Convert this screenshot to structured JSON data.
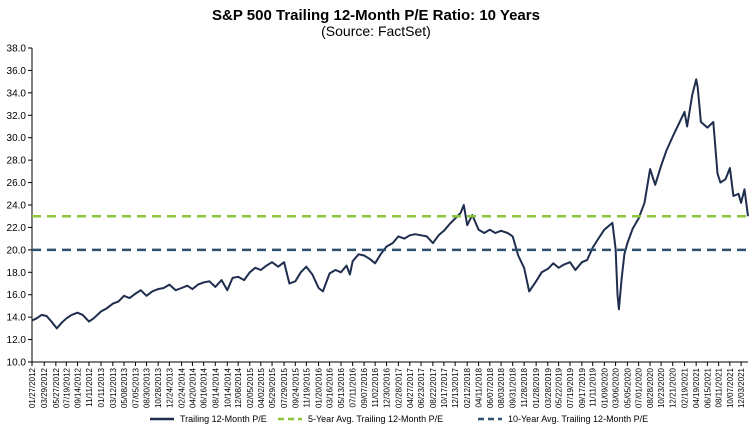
{
  "chart_data": {
    "type": "line",
    "title": "S&P 500 Trailing 12-Month P/E Ratio: 10 Years",
    "subtitle": "(Source: FactSet)",
    "xlabel": "",
    "ylabel": "",
    "ylim": [
      10.0,
      38.0
    ],
    "yticks": [
      "38.0",
      "36.0",
      "34.0",
      "32.0",
      "30.0",
      "28.0",
      "26.0",
      "24.0",
      "22.0",
      "20.0",
      "18.0",
      "16.0",
      "14.0",
      "12.0",
      "10.0"
    ],
    "xlim": [
      "2012-01-27",
      "2022-01-07"
    ],
    "xticks": [
      "01/27/2012",
      "03/29/2012",
      "05/27/2012",
      "07/19/2012",
      "09/14/2012",
      "11/11/2012",
      "01/11/2013",
      "03/12/2013",
      "05/08/2013",
      "07/05/2013",
      "08/30/2013",
      "10/28/2013",
      "12/24/2013",
      "02/24/2014",
      "04/20/2014",
      "06/16/2014",
      "08/14/2014",
      "10/14/2014",
      "12/08/2014",
      "02/05/2015",
      "04/02/2015",
      "05/29/2015",
      "07/29/2015",
      "09/24/2015",
      "11/19/2015",
      "01/20/2016",
      "03/16/2016",
      "05/13/2016",
      "07/11/2016",
      "09/07/2016",
      "11/02/2016",
      "12/30/2016",
      "02/28/2017",
      "04/27/2017",
      "06/23/2017",
      "08/22/2017",
      "10/17/2017",
      "12/13/2017",
      "02/12/2018",
      "04/11/2018",
      "06/07/2018",
      "08/03/2018",
      "09/31/2018",
      "11/28/2018",
      "01/28/2019",
      "03/28/2019",
      "05/22/2019",
      "07/19/2019",
      "09/17/2019",
      "11/11/2019",
      "01/09/2020",
      "03/06/2020",
      "05/05/2020",
      "07/01/2020",
      "08/28/2020",
      "10/23/2020",
      "12/21/2020",
      "02/19/2021",
      "04/19/2021",
      "06/15/2021",
      "08/11/2021",
      "10/07/2021",
      "12/03/2021"
    ],
    "grid": false,
    "legend_position": "bottom",
    "series": [
      {
        "name": "Trailing 12-Month P/E",
        "color": "#1f2d4e",
        "style": "solid",
        "points": [
          [
            "2012-01-27",
            13.7
          ],
          [
            "2012-02-20",
            13.9
          ],
          [
            "2012-03-15",
            14.2
          ],
          [
            "2012-04-10",
            14.1
          ],
          [
            "2012-05-05",
            13.6
          ],
          [
            "2012-06-01",
            13.0
          ],
          [
            "2012-06-25",
            13.5
          ],
          [
            "2012-07-20",
            13.9
          ],
          [
            "2012-08-15",
            14.2
          ],
          [
            "2012-09-14",
            14.4
          ],
          [
            "2012-10-10",
            14.2
          ],
          [
            "2012-11-11",
            13.6
          ],
          [
            "2012-12-05",
            13.9
          ],
          [
            "2013-01-11",
            14.5
          ],
          [
            "2013-02-10",
            14.8
          ],
          [
            "2013-03-12",
            15.2
          ],
          [
            "2013-04-10",
            15.4
          ],
          [
            "2013-05-08",
            15.9
          ],
          [
            "2013-06-05",
            15.7
          ],
          [
            "2013-07-05",
            16.1
          ],
          [
            "2013-08-01",
            16.4
          ],
          [
            "2013-08-30",
            15.9
          ],
          [
            "2013-09-28",
            16.3
          ],
          [
            "2013-10-28",
            16.5
          ],
          [
            "2013-11-25",
            16.6
          ],
          [
            "2013-12-24",
            16.9
          ],
          [
            "2014-01-25",
            16.4
          ],
          [
            "2014-02-24",
            16.6
          ],
          [
            "2014-03-25",
            16.8
          ],
          [
            "2014-04-20",
            16.5
          ],
          [
            "2014-05-18",
            16.9
          ],
          [
            "2014-06-16",
            17.1
          ],
          [
            "2014-07-15",
            17.2
          ],
          [
            "2014-08-14",
            16.7
          ],
          [
            "2014-09-15",
            17.3
          ],
          [
            "2014-10-14",
            16.4
          ],
          [
            "2014-11-10",
            17.5
          ],
          [
            "2014-12-08",
            17.6
          ],
          [
            "2015-01-07",
            17.3
          ],
          [
            "2015-02-05",
            18.0
          ],
          [
            "2015-03-05",
            18.4
          ],
          [
            "2015-04-02",
            18.2
          ],
          [
            "2015-05-01",
            18.6
          ],
          [
            "2015-05-29",
            18.9
          ],
          [
            "2015-06-29",
            18.5
          ],
          [
            "2015-07-29",
            18.9
          ],
          [
            "2015-08-25",
            17.0
          ],
          [
            "2015-09-24",
            17.2
          ],
          [
            "2015-10-22",
            18.0
          ],
          [
            "2015-11-19",
            18.5
          ],
          [
            "2015-12-20",
            17.8
          ],
          [
            "2016-01-20",
            16.6
          ],
          [
            "2016-02-11",
            16.3
          ],
          [
            "2016-03-16",
            17.9
          ],
          [
            "2016-04-15",
            18.2
          ],
          [
            "2016-05-13",
            18.0
          ],
          [
            "2016-06-10",
            18.6
          ],
          [
            "2016-06-27",
            17.8
          ],
          [
            "2016-07-11",
            19.0
          ],
          [
            "2016-08-10",
            19.6
          ],
          [
            "2016-09-07",
            19.5
          ],
          [
            "2016-10-05",
            19.2
          ],
          [
            "2016-11-02",
            18.8
          ],
          [
            "2016-11-30",
            19.6
          ],
          [
            "2016-12-30",
            20.3
          ],
          [
            "2017-01-30",
            20.6
          ],
          [
            "2017-02-28",
            21.2
          ],
          [
            "2017-03-30",
            21.0
          ],
          [
            "2017-04-27",
            21.3
          ],
          [
            "2017-05-25",
            21.4
          ],
          [
            "2017-06-23",
            21.3
          ],
          [
            "2017-07-22",
            21.2
          ],
          [
            "2017-08-22",
            20.6
          ],
          [
            "2017-09-20",
            21.3
          ],
          [
            "2017-10-17",
            21.7
          ],
          [
            "2017-11-15",
            22.3
          ],
          [
            "2017-12-13",
            22.8
          ],
          [
            "2018-01-10",
            23.3
          ],
          [
            "2018-01-26",
            24.0
          ],
          [
            "2018-02-12",
            22.2
          ],
          [
            "2018-03-10",
            23.1
          ],
          [
            "2018-04-11",
            21.8
          ],
          [
            "2018-05-10",
            21.5
          ],
          [
            "2018-06-07",
            21.8
          ],
          [
            "2018-07-05",
            21.5
          ],
          [
            "2018-08-03",
            21.7
          ],
          [
            "2018-09-05",
            21.5
          ],
          [
            "2018-09-31",
            21.2
          ],
          [
            "2018-10-29",
            19.5
          ],
          [
            "2018-11-28",
            18.4
          ],
          [
            "2018-12-24",
            16.3
          ],
          [
            "2019-01-28",
            17.2
          ],
          [
            "2019-02-25",
            18.0
          ],
          [
            "2019-03-28",
            18.3
          ],
          [
            "2019-04-25",
            18.8
          ],
          [
            "2019-05-22",
            18.4
          ],
          [
            "2019-06-20",
            18.7
          ],
          [
            "2019-07-19",
            18.9
          ],
          [
            "2019-08-15",
            18.2
          ],
          [
            "2019-09-17",
            18.9
          ],
          [
            "2019-10-14",
            19.1
          ],
          [
            "2019-11-11",
            20.2
          ],
          [
            "2019-12-10",
            21.0
          ],
          [
            "2020-01-09",
            21.8
          ],
          [
            "2020-02-19",
            22.4
          ],
          [
            "2020-03-06",
            20.1
          ],
          [
            "2020-03-16",
            16.0
          ],
          [
            "2020-03-23",
            14.7
          ],
          [
            "2020-04-06",
            17.5
          ],
          [
            "2020-04-20",
            19.6
          ],
          [
            "2020-05-05",
            20.6
          ],
          [
            "2020-06-01",
            21.9
          ],
          [
            "2020-07-01",
            22.8
          ],
          [
            "2020-07-31",
            24.2
          ],
          [
            "2020-08-28",
            27.2
          ],
          [
            "2020-09-23",
            25.8
          ],
          [
            "2020-10-23",
            27.5
          ],
          [
            "2020-11-20",
            28.9
          ],
          [
            "2020-12-21",
            30.1
          ],
          [
            "2021-01-20",
            31.2
          ],
          [
            "2021-02-19",
            32.3
          ],
          [
            "2021-03-04",
            31.0
          ],
          [
            "2021-03-30",
            33.8
          ],
          [
            "2021-04-19",
            35.2
          ],
          [
            "2021-04-27",
            34.5
          ],
          [
            "2021-05-13",
            31.4
          ],
          [
            "2021-06-15",
            30.9
          ],
          [
            "2021-07-15",
            31.4
          ],
          [
            "2021-08-05",
            26.8
          ],
          [
            "2021-08-20",
            26.0
          ],
          [
            "2021-09-15",
            26.3
          ],
          [
            "2021-10-07",
            27.3
          ],
          [
            "2021-10-25",
            24.8
          ],
          [
            "2021-11-20",
            25.0
          ],
          [
            "2021-12-03",
            24.2
          ],
          [
            "2021-12-20",
            25.4
          ],
          [
            "2022-01-07",
            23.0
          ]
        ]
      },
      {
        "name": "5-Year Avg. Trailing 12-Month P/E",
        "color": "#8cc63f",
        "style": "dashed",
        "value": 23.0
      },
      {
        "name": "10-Year Avg. Trailing 12-Month P/E",
        "color": "#2f4f6e",
        "style": "dashed",
        "value": 20.0
      }
    ]
  }
}
